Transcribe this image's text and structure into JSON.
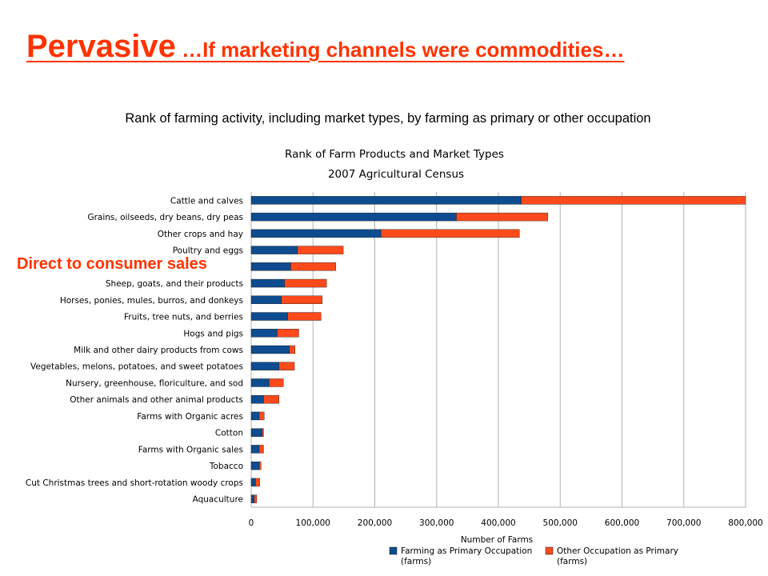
{
  "slide": {
    "title_main": "Pervasive",
    "title_rest": " …If marketing channels were commodities…",
    "subtitle": "Rank of farming activity, including market types, by farming as primary or other occupation",
    "overlay_label": "Direct to consumer sales"
  },
  "chart_data": {
    "type": "bar",
    "orientation": "horizontal",
    "stacked": true,
    "title": "Rank of Farm Products and Market Types",
    "subtitle": "2007 Agricultural Census",
    "xlabel": "Number of Farms",
    "xlim": [
      0,
      800000
    ],
    "xticks": [
      0,
      100000,
      200000,
      300000,
      400000,
      500000,
      600000,
      700000,
      800000
    ],
    "xtick_labels": [
      "0",
      "100,000",
      "200,000",
      "300,000",
      "400,000",
      "500,000",
      "600,000",
      "700,000",
      "800,000"
    ],
    "grid": true,
    "legend_position": "bottom",
    "categories": [
      "Cattle and calves",
      "Grains, oilseeds, dry beans, dry peas",
      "Other crops and hay",
      "Poultry and eggs",
      "",
      "Sheep, goats, and their products",
      "Horses, ponies, mules, burros, and donkeys",
      "Fruits, tree nuts, and berries",
      "Hogs and pigs",
      "Milk and other dairy products from cows",
      "Vegetables, melons, potatoes, and sweet potatoes",
      "Nursery, greenhouse, floriculture, and sod",
      "Other animals and other animal products",
      "Farms with Organic acres",
      "Cotton",
      "Farms with Organic sales",
      "Tobacco",
      "Cut Christmas trees and short-rotation woody crops",
      "Aquaculture"
    ],
    "series": [
      {
        "name": "Farming as Primary Occupation (farms)",
        "color": "#0e4c8f",
        "values": [
          437000,
          332000,
          210000,
          75000,
          64000,
          54000,
          49000,
          59000,
          42000,
          62000,
          45000,
          29000,
          20000,
          13000,
          18000,
          13000,
          13000,
          7000,
          5000
        ]
      },
      {
        "name": "Other Occupation as Primary (farms)",
        "color": "#ff4a1c",
        "values": [
          363000,
          148000,
          224000,
          74000,
          73000,
          68000,
          66000,
          54000,
          35000,
          9000,
          25000,
          23000,
          25000,
          8000,
          2000,
          7000,
          3000,
          7000,
          4000
        ]
      }
    ]
  }
}
